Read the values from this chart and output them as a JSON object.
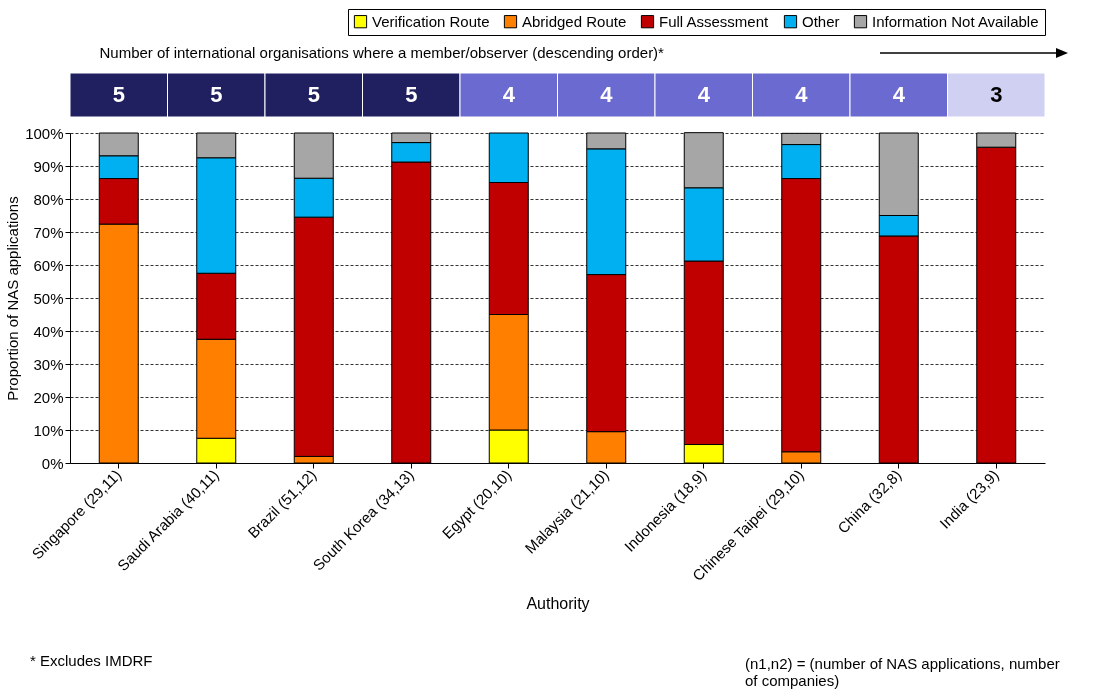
{
  "chart_data": {
    "type": "bar",
    "stacked": true,
    "subtitle": "Number of international organisations where a member/observer (descending order)*",
    "xlabel": "Authority",
    "ylabel": "Proportion of NAS applications",
    "categories": [
      "Singapore (29,11)",
      "Saudi Arabia (40,11)",
      "Brazil (51,12)",
      "South Korea (34,13)",
      "Egypt (20,10)",
      "Malaysia (21,10)",
      "Indonesia (18,9)",
      "Chinese Taipei (29,10)",
      "China (32,8)",
      "India (23,9)"
    ],
    "series": [
      {
        "name": "Verification Route",
        "color": "#ffff00",
        "values": [
          0,
          7.5,
          0,
          0,
          10,
          0,
          5.6,
          0,
          0,
          0
        ]
      },
      {
        "name": "Abridged Route",
        "color": "#ff8000",
        "values": [
          72.4,
          30,
          2,
          0,
          35,
          9.5,
          0,
          3.4,
          0,
          0
        ]
      },
      {
        "name": "Full Assessment",
        "color": "#c00000",
        "values": [
          13.8,
          20,
          72.5,
          91.2,
          40,
          47.6,
          55.6,
          82.8,
          68.8,
          95.7
        ]
      },
      {
        "name": "Other",
        "color": "#00b0f0",
        "values": [
          6.9,
          35,
          11.8,
          5.9,
          15,
          38.1,
          22.2,
          10.3,
          6.2,
          0
        ]
      },
      {
        "name": "Information Not Available",
        "color": "#a6a6a6",
        "values": [
          6.9,
          7.5,
          13.7,
          2.9,
          0,
          4.8,
          16.7,
          3.4,
          25,
          4.3
        ]
      }
    ],
    "ylim": [
      0,
      100
    ],
    "yticks": [
      {
        "value": 0,
        "label": "0%"
      },
      {
        "value": 10,
        "label": "10%"
      },
      {
        "value": 20,
        "label": "20%"
      },
      {
        "value": 30,
        "label": "30%"
      },
      {
        "value": 40,
        "label": "40%"
      },
      {
        "value": 50,
        "label": "50%"
      },
      {
        "value": 60,
        "label": "60%"
      },
      {
        "value": 70,
        "label": "70%"
      },
      {
        "value": 80,
        "label": "80%"
      },
      {
        "value": 90,
        "label": "90%"
      },
      {
        "value": 100,
        "label": "100%"
      }
    ],
    "grid": "y",
    "legend": "top",
    "annotations": [
      "5",
      "5",
      "5",
      "5",
      "4",
      "4",
      "4",
      "4",
      "4",
      "3",
      "* Excludes IMDRF",
      "(n1,n2) = (number of NAS applications, number of companies)"
    ]
  }
}
